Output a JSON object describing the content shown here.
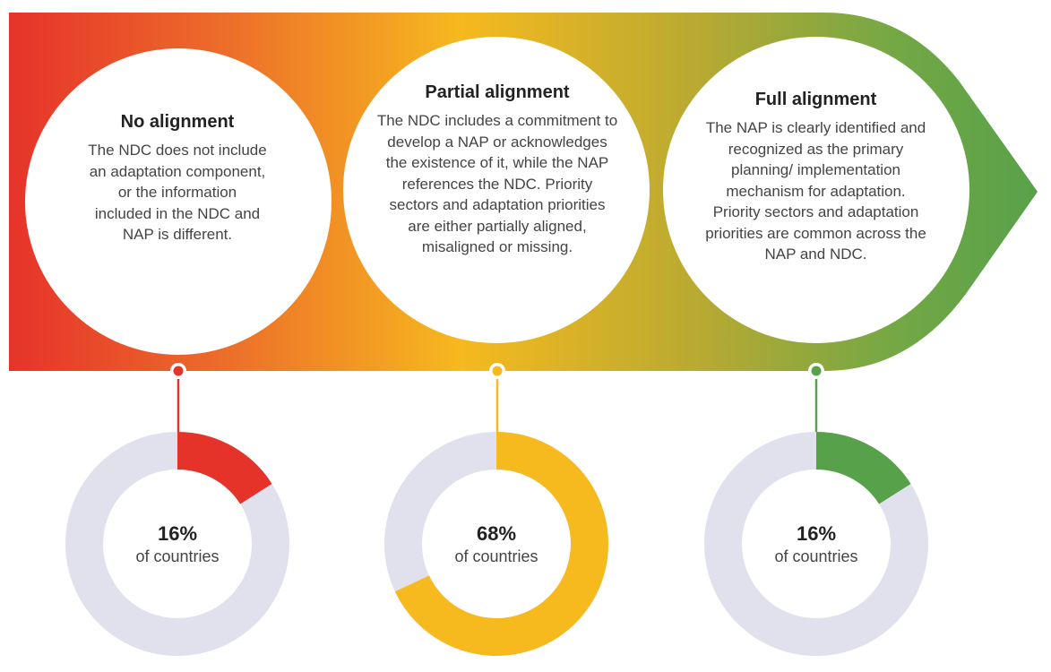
{
  "colors": {
    "red": "#E6332A",
    "orange": "#F08A24",
    "yellow": "#F6B91E",
    "green": "#57A14A",
    "track": "#E1E1EE",
    "white": "#FFFFFF"
  },
  "stages": [
    {
      "title": "No alignment",
      "description": "The NDC does not include an adaptation component, or the information included in the NDC and NAP is different.",
      "percent_label": "16%",
      "sub_label": "of countries",
      "color": "#E6332A"
    },
    {
      "title": "Partial alignment",
      "description": "The NDC includes a commitment to develop a NAP or acknowledges the existence of it, while the NAP references the NDC. Priority sectors and adaptation priorities are either partially aligned, misaligned or missing.",
      "percent_label": "68%",
      "sub_label": "of countries",
      "color": "#F6B91E"
    },
    {
      "title": "Full alignment",
      "description": "The NAP is clearly identified and recognized as the primary planning/ implementation mechanism for adaptation. Priority sectors and adaptation priorities are common across the NAP and NDC.",
      "percent_label": "16%",
      "sub_label": "of countries",
      "color": "#57A14A"
    }
  ],
  "chart_data": {
    "type": "pie",
    "categories": [
      "No alignment",
      "Partial alignment",
      "Full alignment"
    ],
    "values": [
      16,
      68,
      16
    ],
    "unit": "% of countries"
  }
}
